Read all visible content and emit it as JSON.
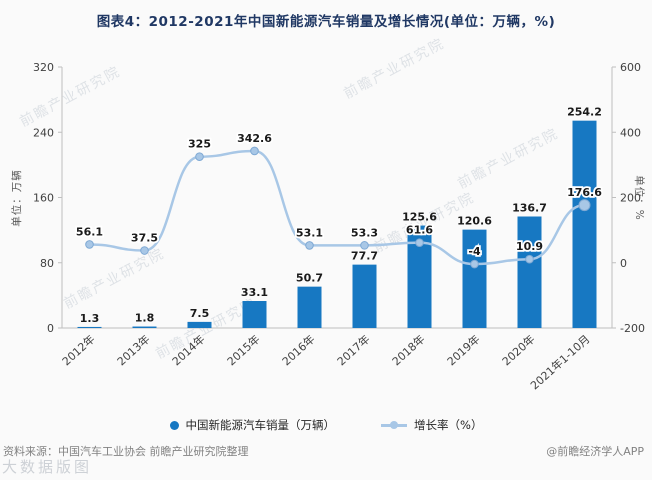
{
  "title": "图表4：2012-2021年中国新能源汽车销量及增长情况(单位：万辆，%)",
  "chart_data": {
    "type": "bar+line",
    "categories": [
      "2012年",
      "2013年",
      "2014年",
      "2015年",
      "2016年",
      "2017年",
      "2018年",
      "2019年",
      "2020年",
      "2021年1-10月"
    ],
    "series": [
      {
        "name": "中国新能源汽车销量（万辆）",
        "type": "bar",
        "axis": "left",
        "values": [
          1.3,
          1.8,
          7.5,
          33.1,
          50.7,
          77.7,
          125.6,
          120.6,
          136.7,
          254.2
        ]
      },
      {
        "name": "增长率（%）",
        "type": "line",
        "axis": "right",
        "values": [
          56.1,
          37.5,
          325,
          342.6,
          53.1,
          53.3,
          61.6,
          -4,
          10.9,
          176.6
        ]
      }
    ],
    "left_axis": {
      "title": "单位：万辆",
      "min": 0,
      "max": 320,
      "ticks": [
        0,
        80,
        160,
        240,
        320
      ]
    },
    "right_axis": {
      "title": "单位：%",
      "min": -200,
      "max": 600,
      "ticks": [
        -200,
        0,
        200,
        400,
        600
      ]
    },
    "grid": false,
    "legend_position": "bottom"
  },
  "legend": {
    "bar_label": "中国新能源汽车销量（万辆）",
    "line_label": "增长率（%）"
  },
  "footer": {
    "source": "资料来源：中国汽车工业协会 前瞻产业研究院整理",
    "credit": "@前瞻经济学人APP"
  },
  "watermark": {
    "text": "前瞻产业研究院",
    "corner": "大数据版图"
  },
  "colors": {
    "bar": "#1778c2",
    "line": "#a8c7e6",
    "line_marker_edge": "#7fa9d4",
    "axis": "#bfbfbf",
    "tick_text": "#404040",
    "value_label": "#1a1a1a",
    "title": "#203864"
  }
}
